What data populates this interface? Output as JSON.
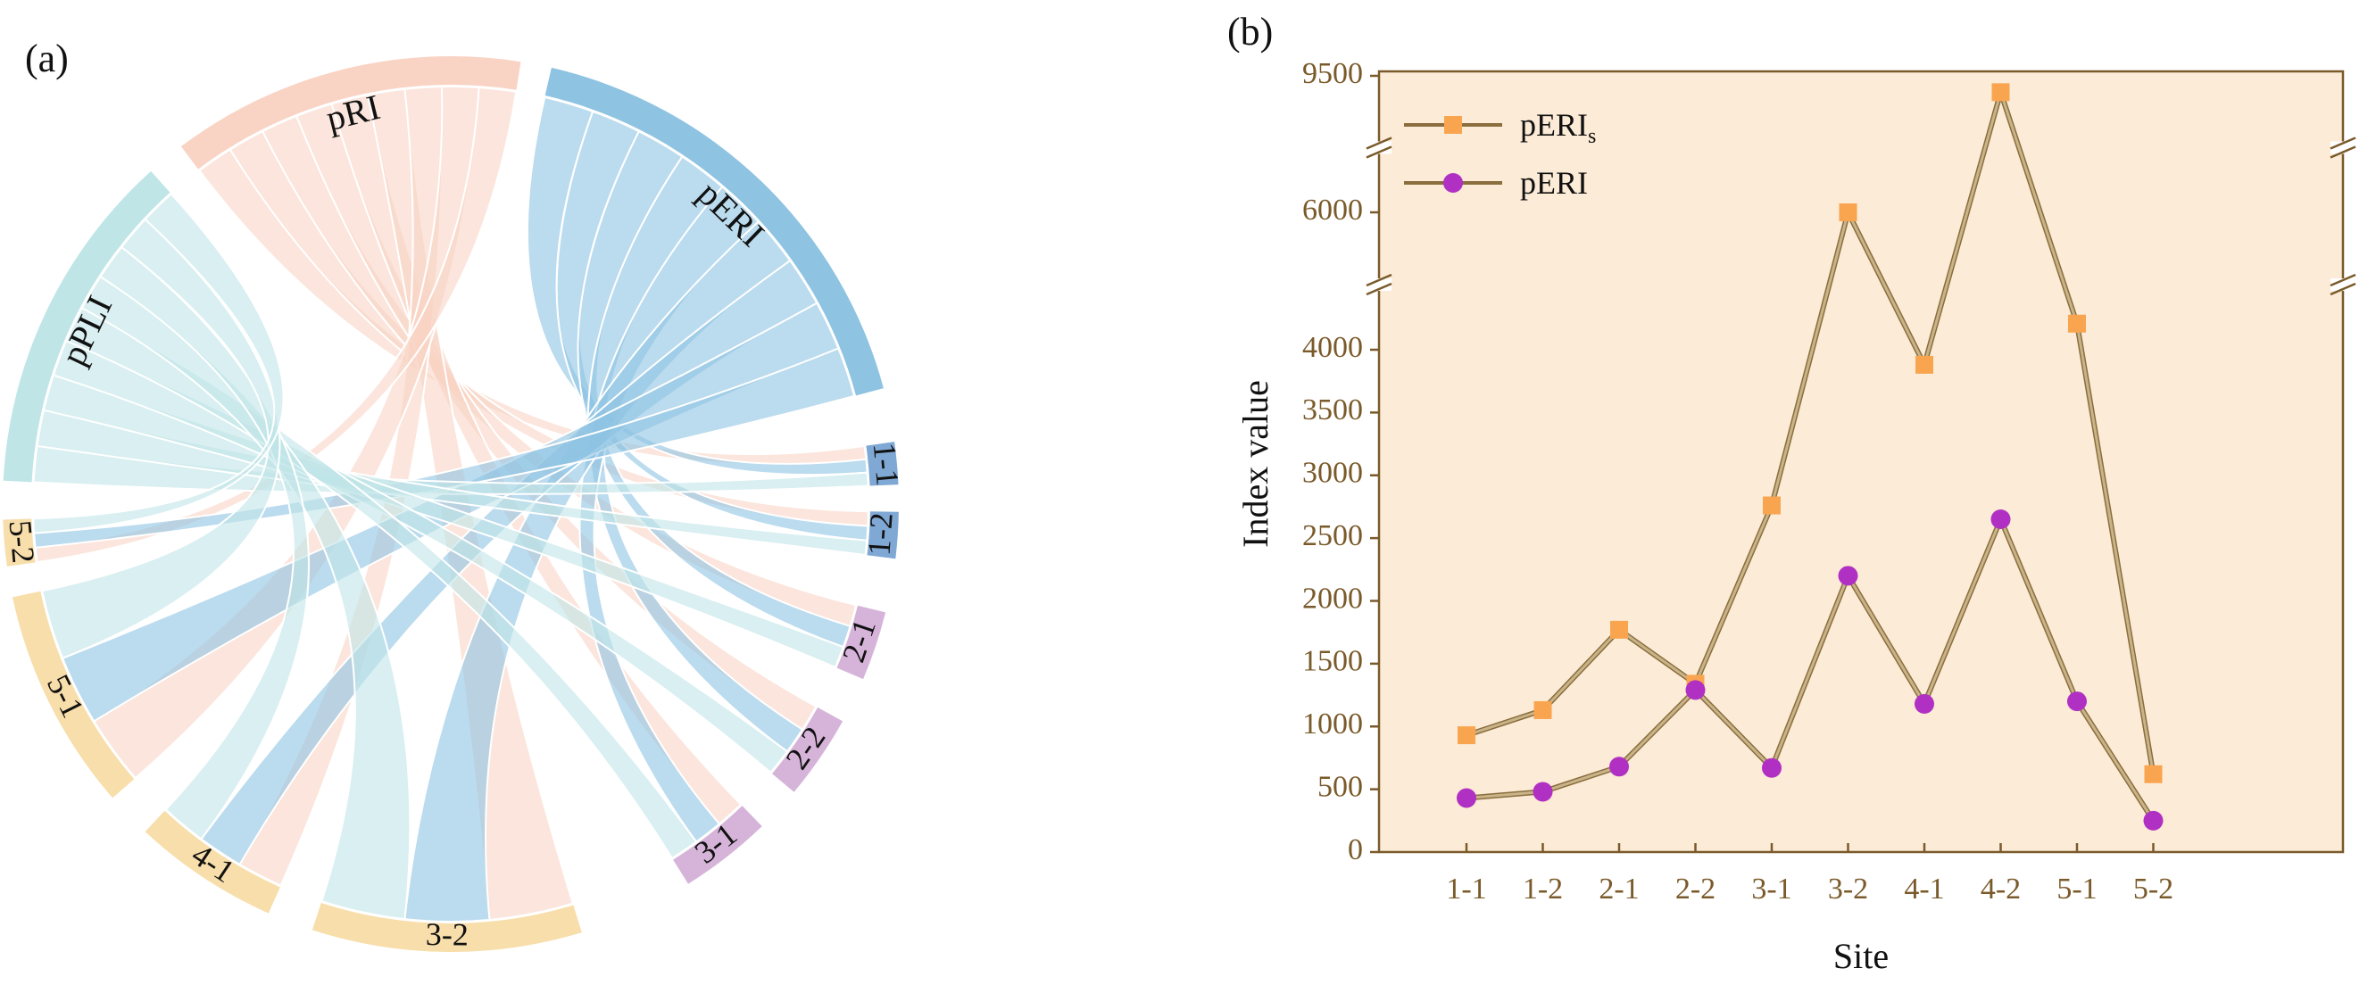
{
  "panels": {
    "a_label": "(a)",
    "b_label": "(b)"
  },
  "chart_data": [
    {
      "type": "chord",
      "groups": [
        {
          "name": "pRI",
          "color": "#f9d3c4"
        },
        {
          "name": "pERI",
          "color": "#8ec3e2"
        },
        {
          "name": "1-1",
          "color": "#7fa8d4"
        },
        {
          "name": "1-2",
          "color": "#7fa8d4"
        },
        {
          "name": "2-1",
          "color": "#d6b4d9"
        },
        {
          "name": "2-2",
          "color": "#d6b4d9"
        },
        {
          "name": "3-1",
          "color": "#d6b4d9"
        },
        {
          "name": "3-2",
          "color": "#f7deaa"
        },
        {
          "name": "4-1",
          "color": "#f7deaa"
        },
        {
          "name": "5-1",
          "color": "#f7deaa"
        },
        {
          "name": "5-2",
          "color": "#f7deaa"
        },
        {
          "name": "pPLI",
          "color": "#bfe5e7"
        }
      ],
      "links": [
        {
          "from": "pRI",
          "to": "1-1"
        },
        {
          "from": "pRI",
          "to": "1-2"
        },
        {
          "from": "pRI",
          "to": "2-1"
        },
        {
          "from": "pRI",
          "to": "2-2"
        },
        {
          "from": "pRI",
          "to": "3-1"
        },
        {
          "from": "pRI",
          "to": "3-2"
        },
        {
          "from": "pRI",
          "to": "4-1"
        },
        {
          "from": "pRI",
          "to": "5-1"
        },
        {
          "from": "pRI",
          "to": "5-2"
        },
        {
          "from": "pERI",
          "to": "1-1"
        },
        {
          "from": "pERI",
          "to": "1-2"
        },
        {
          "from": "pERI",
          "to": "2-1"
        },
        {
          "from": "pERI",
          "to": "2-2"
        },
        {
          "from": "pERI",
          "to": "3-1"
        },
        {
          "from": "pERI",
          "to": "3-2"
        },
        {
          "from": "pERI",
          "to": "4-1"
        },
        {
          "from": "pERI",
          "to": "5-1"
        },
        {
          "from": "pERI",
          "to": "5-2"
        },
        {
          "from": "pPLI",
          "to": "1-1"
        },
        {
          "from": "pPLI",
          "to": "1-2"
        },
        {
          "from": "pPLI",
          "to": "2-1"
        },
        {
          "from": "pPLI",
          "to": "2-2"
        },
        {
          "from": "pPLI",
          "to": "3-1"
        },
        {
          "from": "pPLI",
          "to": "3-2"
        },
        {
          "from": "pPLI",
          "to": "4-1"
        },
        {
          "from": "pPLI",
          "to": "5-1"
        },
        {
          "from": "pPLI",
          "to": "5-2"
        }
      ]
    },
    {
      "type": "line",
      "categories": [
        "1-1",
        "1-2",
        "2-1",
        "2-2",
        "3-1",
        "3-2",
        "4-1",
        "4-2",
        "5-1",
        "5-2"
      ],
      "series": [
        {
          "name": "pERI",
          "name_sub": "s",
          "marker": "square",
          "color": "#f9a550",
          "values": [
            930,
            1130,
            1770,
            1340,
            2760,
            6000,
            3880,
            9080,
            4380,
            620
          ]
        },
        {
          "name": "pERI",
          "name_sub": "",
          "marker": "circle",
          "color": "#b130c4",
          "values": [
            430,
            480,
            680,
            1290,
            670,
            2200,
            1180,
            2650,
            1200,
            250
          ]
        }
      ],
      "xlabel": "Site",
      "ylabel": "Index value",
      "yticks": [
        "0",
        "500",
        "1000",
        "1500",
        "2000",
        "2500",
        "3000",
        "3500",
        "4000",
        "6000",
        "9500"
      ],
      "ylim": [
        0,
        9500
      ],
      "axis_breaks": [
        [
          4400,
          5800
        ],
        [
          6200,
          9300
        ]
      ],
      "background": "#fcebd6",
      "axis_color": "#7a5a2a",
      "line_color": "#c9b48a",
      "legend": "top-left"
    }
  ]
}
